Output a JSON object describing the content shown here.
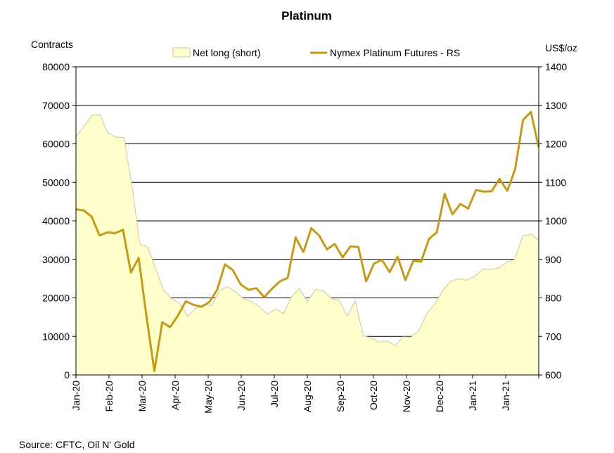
{
  "chart_data": {
    "type": "area+line",
    "title": "Platinum",
    "left_axis_title": "Contracts",
    "right_axis_title": "US$/oz",
    "left_ylim": [
      0,
      80000
    ],
    "left_ticks": [
      "0",
      "10000",
      "20000",
      "30000",
      "40000",
      "50000",
      "60000",
      "70000",
      "80000"
    ],
    "right_ylim": [
      600,
      1400
    ],
    "right_ticks": [
      "600",
      "700",
      "800",
      "900",
      "1000",
      "1100",
      "1200",
      "1300",
      "1400"
    ],
    "x_tick_labels": [
      "Jan-20",
      "Feb-20",
      "Mar-20",
      "Apr-20",
      "May-20",
      "Jun-20",
      "Jul-20",
      "Aug-20",
      "Sep-20",
      "Oct-20",
      "Nov-20",
      "Dec-20",
      "Jan-21",
      "Jan-21"
    ],
    "grid": "horizontal",
    "legend_position": "top",
    "source": "Source: CFTC, Oil N' Gold",
    "colors": {
      "area_fill": "#FFFFCC",
      "area_stroke": "#C8C8A0",
      "line": "#C49A1A",
      "grid": "#000000"
    },
    "series": [
      {
        "name": "Net long (short)",
        "axis": "left",
        "type": "area",
        "values": [
          62000,
          64500,
          67400,
          67600,
          62800,
          61800,
          61600,
          49500,
          34000,
          33200,
          27500,
          22000,
          19700,
          18600,
          15200,
          17200,
          18300,
          18000,
          22000,
          22900,
          21600,
          19700,
          19100,
          17700,
          15800,
          17100,
          16000,
          20200,
          22500,
          19000,
          22200,
          21800,
          19900,
          19300,
          15200,
          19400,
          10200,
          9600,
          8500,
          8800,
          7600,
          9900,
          9800,
          11600,
          16000,
          18500,
          22000,
          24400,
          25000,
          24600,
          25600,
          27500,
          27400,
          27800,
          29300,
          30000,
          36100,
          36600,
          34900
        ]
      },
      {
        "name": "Nymex Platinum Futures - RS",
        "axis": "right",
        "type": "line",
        "values": [
          1030,
          1027,
          1011,
          962,
          970,
          968,
          977,
          866,
          904,
          750,
          610,
          737,
          724,
          754,
          791,
          782,
          777,
          789,
          821,
          887,
          872,
          835,
          821,
          825,
          802,
          824,
          843,
          852,
          957,
          919,
          981,
          962,
          926,
          940,
          905,
          934,
          932,
          843,
          889,
          899,
          867,
          907,
          846,
          896,
          894,
          953,
          970,
          1070,
          1017,
          1044,
          1032,
          1080,
          1076,
          1077,
          1109,
          1078,
          1135,
          1262,
          1283,
          1191
        ]
      }
    ]
  }
}
